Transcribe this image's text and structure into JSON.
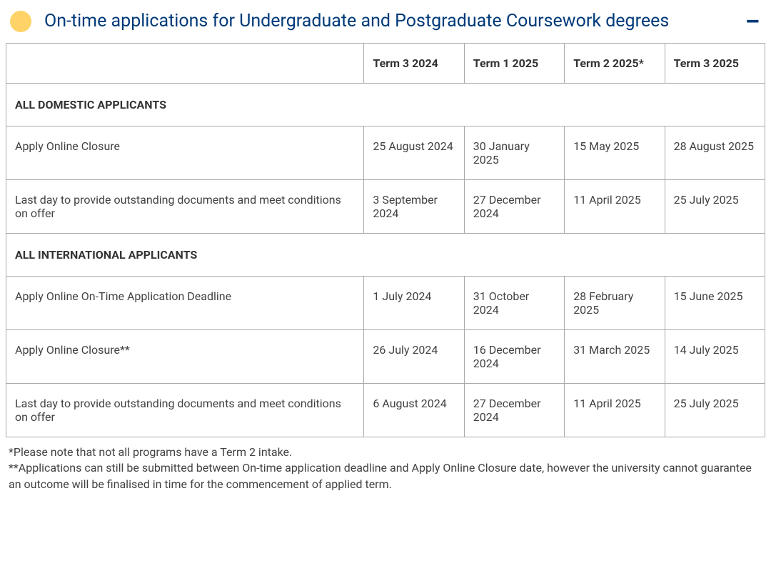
{
  "header": {
    "title": "On-time applications for Undergraduate and Postgraduate Coursework degrees",
    "dot_color": "#ffd367",
    "title_color": "#003a79",
    "collapse_color": "#003a79",
    "collapse_label": "–"
  },
  "table": {
    "columns": [
      "Term 3 2024",
      "Term 1 2025",
      "Term 2 2025*",
      "Term 3 2025"
    ],
    "sections": [
      {
        "label": "ALL DOMESTIC APPLICANTS",
        "rows": [
          {
            "label": "Apply Online Closure",
            "cells": [
              "25 August 2024",
              "30 January 2025",
              "15 May 2025",
              "28 August 2025"
            ]
          },
          {
            "label": "Last day to provide outstanding documents and meet conditions on offer",
            "cells": [
              "3 September 2024",
              "27 December 2024",
              "11 April 2025",
              "25 July 2025"
            ]
          }
        ]
      },
      {
        "label": "ALL INTERNATIONAL APPLICANTS",
        "rows": [
          {
            "label": "Apply Online On-Time Application Deadline",
            "cells": [
              "1 July 2024",
              "31 October 2024",
              "28 February 2025",
              "15 June 2025"
            ]
          },
          {
            "label": "Apply Online Closure**",
            "cells": [
              "26 July 2024",
              "16 December 2024",
              "31 March 2025",
              "14 July 2025"
            ]
          },
          {
            "label": "Last day to provide outstanding documents and meet conditions on offer",
            "cells": [
              "6 August 2024",
              "27 December 2024",
              "11 April 2025",
              "25 July 2025"
            ]
          }
        ]
      }
    ]
  },
  "footnotes": [
    "*Please note that not all programs have a Term 2 intake.",
    "**Applications can still be submitted between On-time application deadline and Apply Online Closure date, however the university cannot guarantee an outcome will be finalised in time for the commencement of applied term."
  ]
}
